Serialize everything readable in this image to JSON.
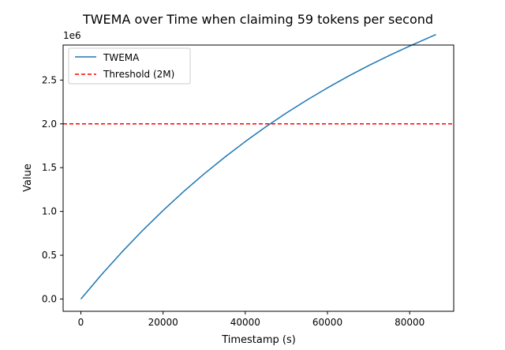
{
  "chart_data": {
    "type": "line",
    "title": "TWEMA over Time when claiming 59 tokens per second",
    "xlabel": "Timestamp (s)",
    "ylabel": "Value",
    "y_scale_label": "1e6",
    "xlim": [
      -4320,
      90720
    ],
    "ylim": [
      -140000,
      2900000
    ],
    "x_ticks": [
      0,
      20000,
      40000,
      60000,
      80000
    ],
    "x_tick_labels": [
      "0",
      "20000",
      "40000",
      "60000",
      "80000"
    ],
    "y_ticks": [
      0,
      500000,
      1000000,
      1500000,
      2000000,
      2500000
    ],
    "y_tick_labels": [
      "0.0",
      "0.5",
      "1.0",
      "1.5",
      "2.0",
      "2.5"
    ],
    "grid": false,
    "legend_position": "upper-left",
    "series": [
      {
        "name": "TWEMA",
        "color": "#1f77b4",
        "style": "solid",
        "x": [
          0,
          5000,
          10000,
          15000,
          20000,
          25000,
          30000,
          35000,
          40000,
          45000,
          50000,
          55000,
          60000,
          65000,
          70000,
          75000,
          80000,
          86400
        ],
        "y": [
          0,
          277000,
          537000,
          782000,
          1011000,
          1227000,
          1429000,
          1619000,
          1798000,
          1966000,
          2124000,
          2272000,
          2411000,
          2542000,
          2665000,
          2780000,
          2888000,
          3020000
        ]
      }
    ],
    "hlines": [
      {
        "name": "Threshold (2M)",
        "value": 2000000,
        "color": "#ff0000",
        "style": "dashed"
      }
    ]
  }
}
